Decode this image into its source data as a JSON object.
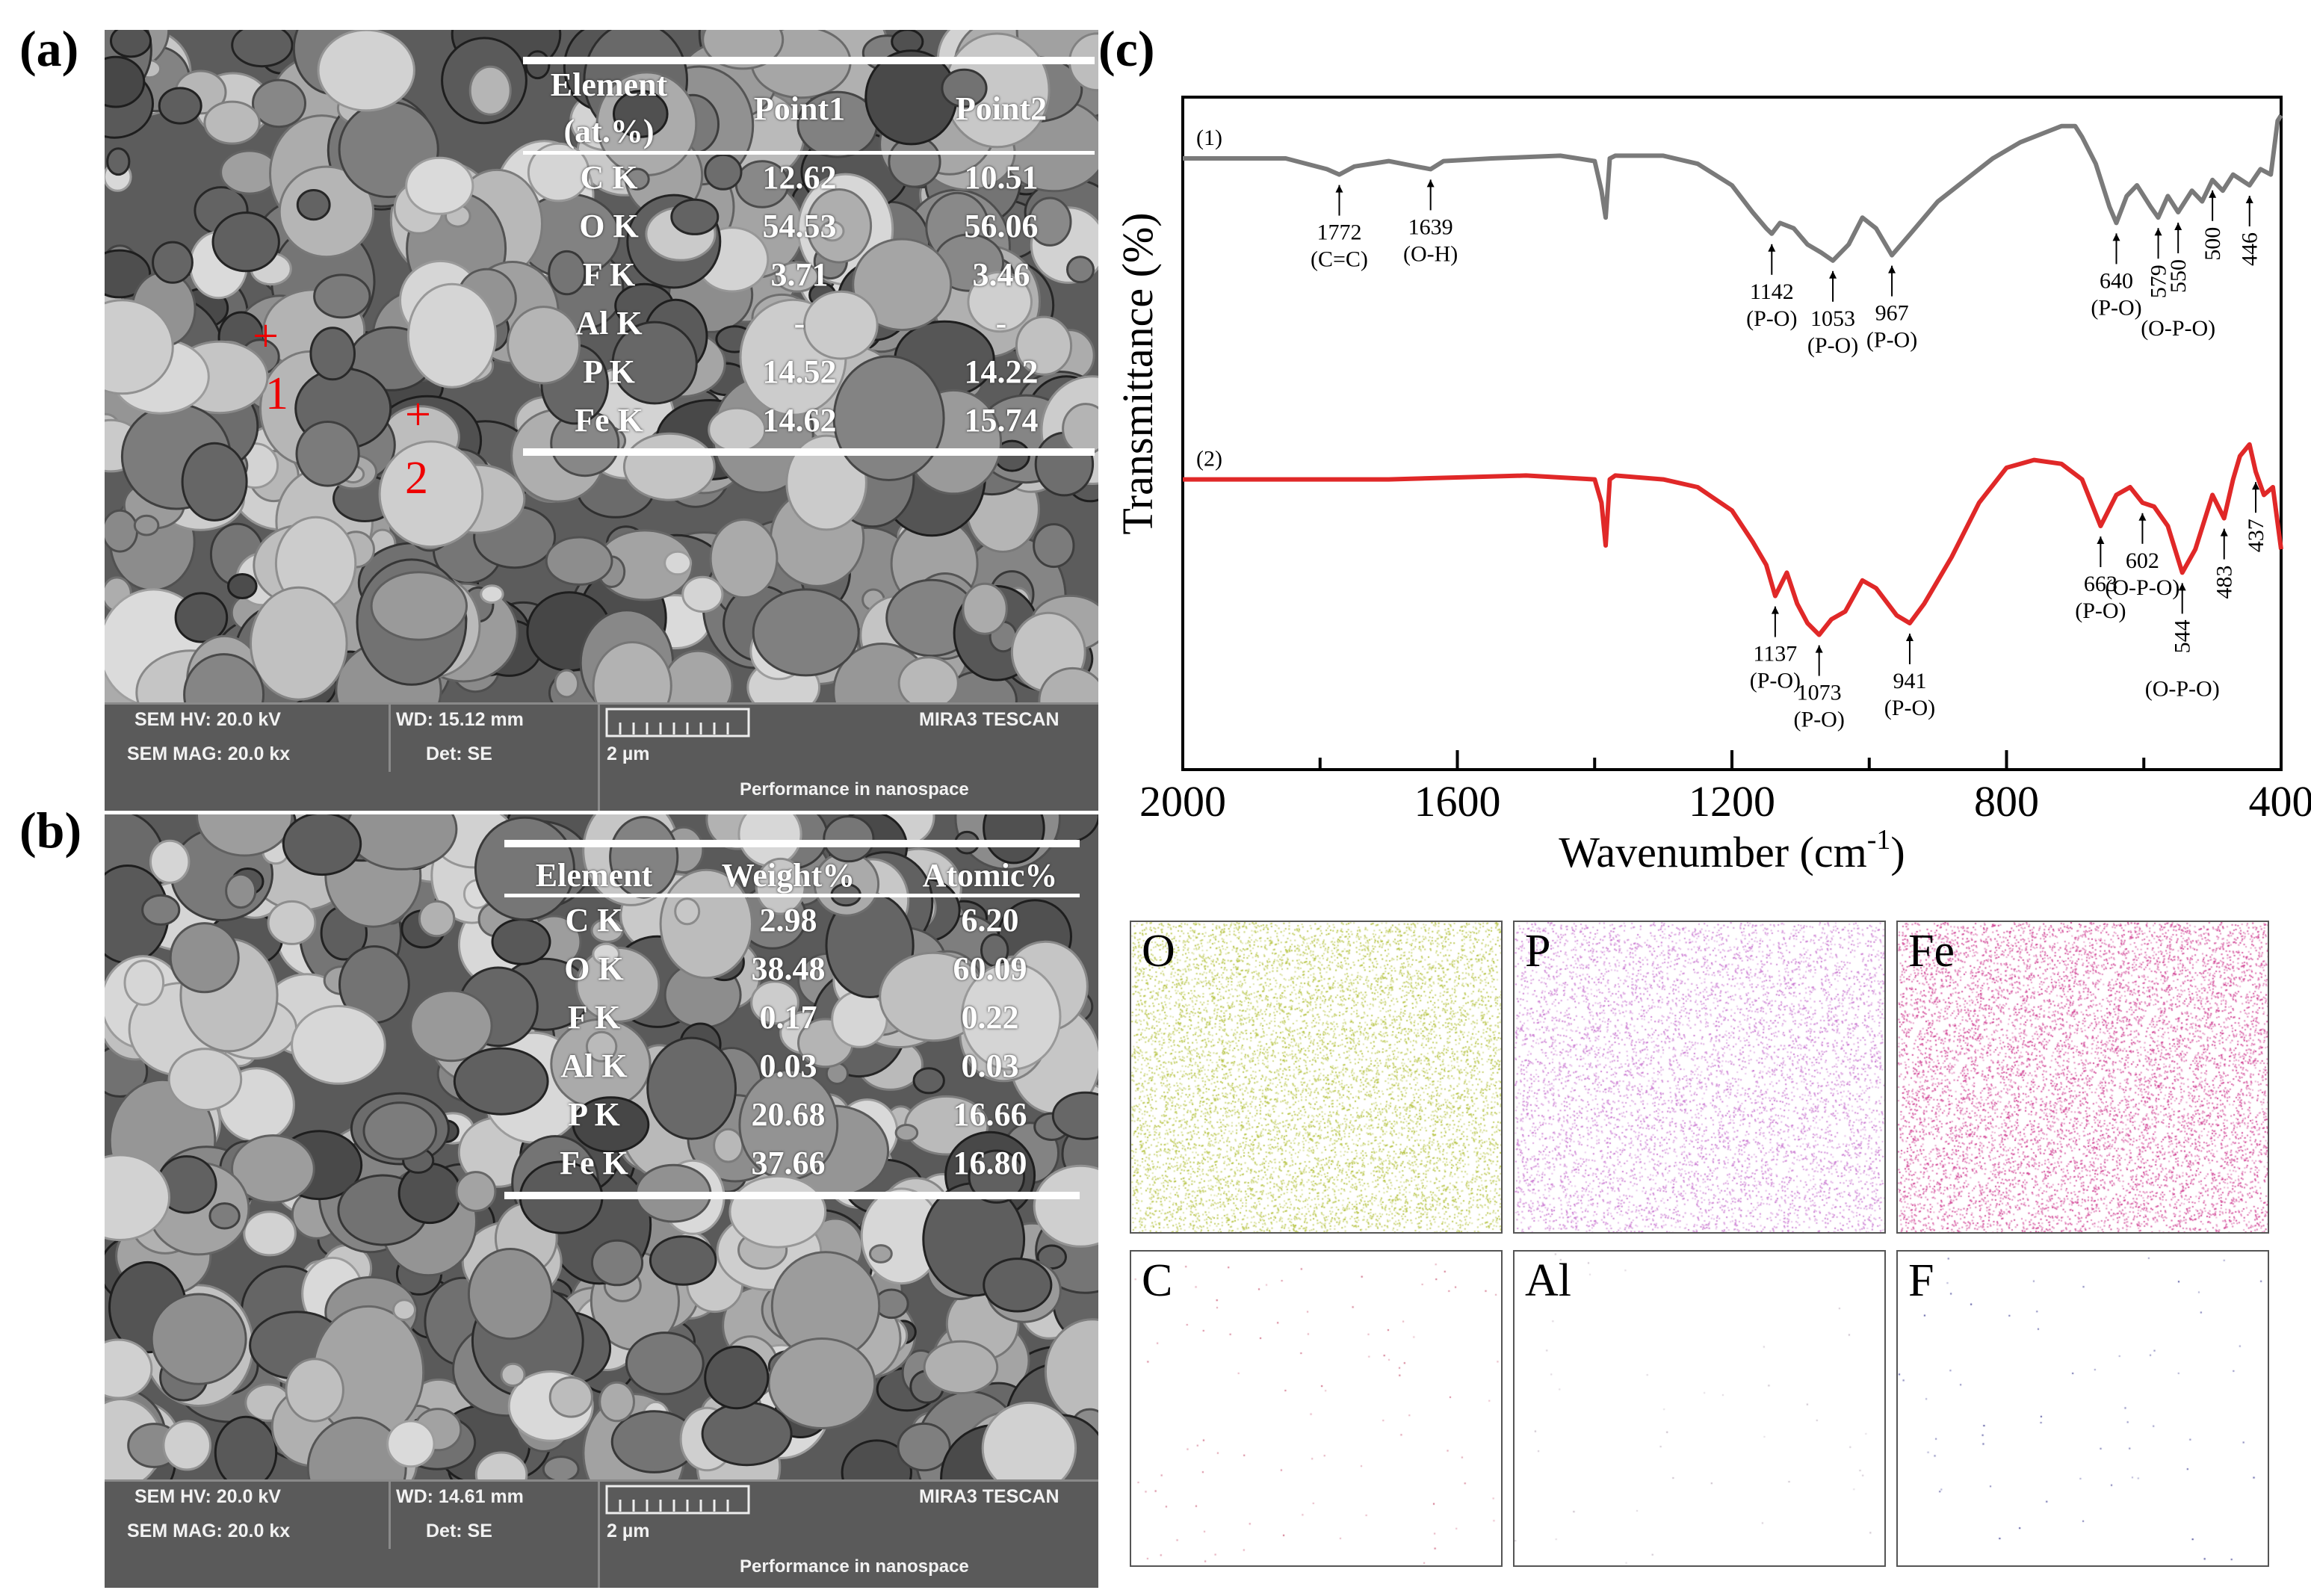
{
  "panels": {
    "a": {
      "label": "(a)",
      "table": {
        "headers": [
          "Element (at.%)",
          "Point1",
          "Point2"
        ],
        "header_line1": "Element",
        "header_line2": "(at.%)",
        "rows": [
          [
            "C K",
            "12.62",
            "10.51"
          ],
          [
            "O K",
            "54.53",
            "56.06"
          ],
          [
            "F K",
            "3.71",
            "3.46"
          ],
          [
            "Al K",
            "-",
            "-"
          ],
          [
            "P K",
            "14.52",
            "14.22"
          ],
          [
            "Fe K",
            "14.62",
            "15.74"
          ]
        ]
      },
      "markers": [
        "1",
        "2"
      ],
      "infobar": {
        "hv": "SEM HV: 20.0 kV",
        "wd": "WD: 15.12 mm",
        "brand": "MIRA3 TESCAN",
        "mag": "SEM MAG: 20.0 kx",
        "det": "Det: SE",
        "scale": "2 µm",
        "slogan": "Performance in nanospace"
      }
    },
    "b": {
      "label": "(b)",
      "table": {
        "headers": [
          "Element",
          "Weight%",
          "Atomic%"
        ],
        "rows": [
          [
            "C K",
            "2.98",
            "6.20"
          ],
          [
            "O K",
            "38.48",
            "60.09"
          ],
          [
            "F K",
            "0.17",
            "0.22"
          ],
          [
            "Al K",
            "0.03",
            "0.03"
          ],
          [
            "P K",
            "20.68",
            "16.66"
          ],
          [
            "Fe K",
            "37.66",
            "16.80"
          ]
        ]
      },
      "infobar": {
        "hv": "SEM HV: 20.0 kV",
        "wd": "WD: 14.61 mm",
        "brand": "MIRA3 TESCAN",
        "mag": "SEM MAG: 20.0 kx",
        "det": "Det: SE",
        "scale": "2 µm",
        "slogan": "Performance in nanospace"
      }
    },
    "c": {
      "label": "(c)"
    }
  },
  "chart_data": {
    "type": "line",
    "xlabel": "Wavenumber (cm",
    "xlabel_sup": "-1",
    "xlabel_end": ")",
    "ylabel": "Transmittance (%)",
    "xlim": [
      2000,
      400
    ],
    "xticks": [
      "2000",
      "1600",
      "1200",
      "800",
      "400"
    ],
    "colors": {
      "s1": "#7a7a7a",
      "s2": "#e02828"
    },
    "series": [
      {
        "name": "(1)",
        "x": [
          2000,
          1850,
          1790,
          1772,
          1750,
          1700,
          1660,
          1639,
          1620,
          1550,
          1450,
          1400,
          1390,
          1384,
          1378,
          1370,
          1300,
          1250,
          1200,
          1170,
          1150,
          1142,
          1130,
          1110,
          1090,
          1070,
          1053,
          1030,
          1010,
          990,
          967,
          940,
          900,
          860,
          820,
          780,
          740,
          720,
          700,
          690,
          670,
          650,
          640,
          625,
          610,
          590,
          579,
          565,
          550,
          530,
          515,
          500,
          485,
          470,
          446,
          430,
          415,
          405,
          400
        ],
        "y": [
          80,
          80,
          76,
          74,
          77,
          79,
          77,
          76,
          79,
          80,
          81,
          79,
          68,
          58,
          80,
          81,
          81,
          78,
          70,
          60,
          54,
          52,
          56,
          54,
          48,
          45,
          42,
          48,
          58,
          54,
          44,
          52,
          64,
          72,
          80,
          86,
          90,
          92,
          92,
          88,
          78,
          62,
          56,
          66,
          70,
          62,
          58,
          66,
          60,
          68,
          64,
          72,
          68,
          74,
          70,
          76,
          74,
          94,
          96
        ]
      },
      {
        "name": "(2)",
        "x": [
          2000,
          1900,
          1700,
          1500,
          1400,
          1390,
          1384,
          1378,
          1370,
          1300,
          1250,
          1200,
          1170,
          1150,
          1137,
          1120,
          1105,
          1090,
          1073,
          1055,
          1035,
          1010,
          990,
          960,
          941,
          920,
          880,
          840,
          800,
          760,
          720,
          690,
          663,
          640,
          620,
          602,
          585,
          565,
          544,
          525,
          500,
          483,
          470,
          460,
          446,
          437,
          425,
          412,
          400
        ],
        "y": [
          42,
          42,
          42,
          43,
          42,
          36,
          25,
          42,
          43,
          42,
          40,
          34,
          26,
          20,
          12,
          18,
          10,
          5,
          2,
          6,
          8,
          16,
          14,
          7,
          5,
          10,
          22,
          36,
          45,
          47,
          46,
          42,
          30,
          38,
          40,
          36,
          35,
          30,
          18,
          24,
          38,
          32,
          42,
          48,
          51,
          44,
          38,
          40,
          24
        ]
      }
    ],
    "annotations": [
      {
        "series": "(1)",
        "x": 1772,
        "text": "1772",
        "sub": "(C=C)"
      },
      {
        "series": "(1)",
        "x": 1639,
        "text": "1639",
        "sub": "(O-H)"
      },
      {
        "series": "(1)",
        "x": 1142,
        "text": "1142",
        "sub": "(P-O)"
      },
      {
        "series": "(1)",
        "x": 1053,
        "text": "1053",
        "sub": "(P-O)"
      },
      {
        "series": "(1)",
        "x": 967,
        "text": "967",
        "sub": "(P-O)"
      },
      {
        "series": "(1)",
        "x": 640,
        "text": "640",
        "sub": "(P-O)"
      },
      {
        "series": "(1)",
        "x": 579,
        "text": "579",
        "sub": ""
      },
      {
        "series": "(1)",
        "x": 550,
        "text": "550",
        "sub": "(O-P-O)"
      },
      {
        "series": "(1)",
        "x": 500,
        "text": "500",
        "sub": ""
      },
      {
        "series": "(1)",
        "x": 446,
        "text": "446",
        "sub": ""
      },
      {
        "series": "(2)",
        "x": 1137,
        "text": "1137",
        "sub": "(P-O)"
      },
      {
        "series": "(2)",
        "x": 1073,
        "text": "1073",
        "sub": "(P-O)"
      },
      {
        "series": "(2)",
        "x": 941,
        "text": "941",
        "sub": "(P-O)"
      },
      {
        "series": "(2)",
        "x": 663,
        "text": "663",
        "sub": "(P-O)"
      },
      {
        "series": "(2)",
        "x": 602,
        "text": "602",
        "sub": "(O-P-O)"
      },
      {
        "series": "(2)",
        "x": 544,
        "text": "544",
        "sub": "(O-P-O)"
      },
      {
        "series": "(2)",
        "x": 483,
        "text": "483",
        "sub": ""
      },
      {
        "series": "(2)",
        "x": 437,
        "text": "437",
        "sub": ""
      }
    ]
  },
  "edx_maps": [
    {
      "label": "O",
      "color": "#a8b820"
    },
    {
      "label": "P",
      "color": "#c060c8"
    },
    {
      "label": "Fe",
      "color": "#c82080"
    },
    {
      "label": "C",
      "color": "#c04060"
    },
    {
      "label": "Al",
      "color": "#b0a0b0"
    },
    {
      "label": "F",
      "color": "#202080"
    }
  ]
}
